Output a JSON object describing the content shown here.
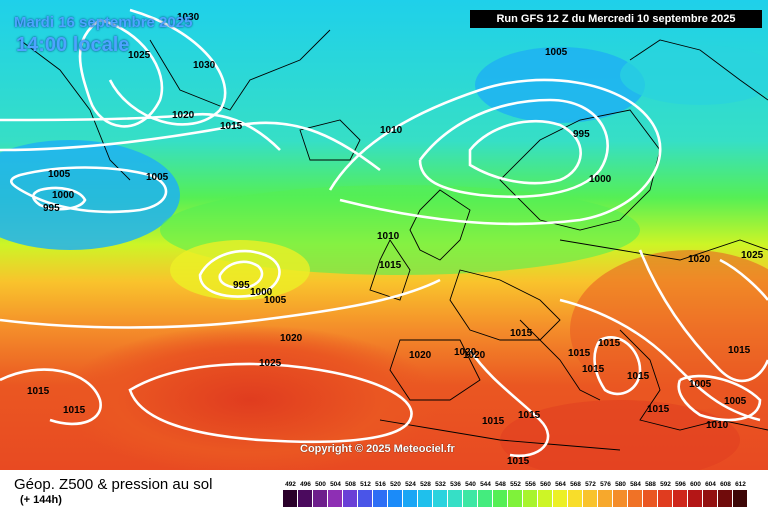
{
  "header": {
    "date_label": "Mardi 16 septembre 2025",
    "time_label": "14:00 locale",
    "run_label": "Run GFS 12 Z du Mercredi 10 septembre 2025"
  },
  "copyright": "Copyright © 2025 Meteociel.fr",
  "legend": {
    "title": "Géop. Z500 & pression au sol",
    "subtitle": "(+ 144h)",
    "ticks": [
      "492",
      "496",
      "500",
      "504",
      "508",
      "512",
      "516",
      "520",
      "524",
      "528",
      "532",
      "536",
      "540",
      "544",
      "548",
      "552",
      "556",
      "560",
      "564",
      "568",
      "572",
      "576",
      "580",
      "584",
      "588",
      "592",
      "596",
      "600",
      "604",
      "608",
      "612"
    ],
    "colors": [
      "#2a002a",
      "#4b0a5e",
      "#6e1e8c",
      "#8e2fb4",
      "#6a3fd6",
      "#4a55e8",
      "#2d6ef5",
      "#1b8bf9",
      "#1aa6f5",
      "#1fc0ec",
      "#2ad3de",
      "#36dfc6",
      "#3de7a4",
      "#44ec7e",
      "#55ef55",
      "#7ff23a",
      "#a8f42e",
      "#cdf526",
      "#ecf026",
      "#f8dd2a",
      "#f9c32c",
      "#f7a82c",
      "#f48d2a",
      "#f07226",
      "#ea5722",
      "#e03c1f",
      "#cf261b",
      "#b41616",
      "#931010",
      "#700b0b",
      "#3d0606"
    ]
  },
  "map": {
    "isobar_labels": [
      {
        "text": "1030"
      },
      {
        "text": "1025"
      },
      {
        "text": "1030"
      },
      {
        "text": "1020"
      },
      {
        "text": "1015"
      },
      {
        "text": "1005"
      },
      {
        "text": "1000"
      },
      {
        "text": "995"
      },
      {
        "text": "1005"
      },
      {
        "text": "1010"
      },
      {
        "text": "1005"
      },
      {
        "text": "995"
      },
      {
        "text": "1000"
      },
      {
        "text": "1010"
      },
      {
        "text": "1015"
      },
      {
        "text": "995"
      },
      {
        "text": "1000"
      },
      {
        "text": "1005"
      },
      {
        "text": "1020"
      },
      {
        "text": "1025"
      },
      {
        "text": "1020"
      },
      {
        "text": "1025"
      },
      {
        "text": "1015"
      },
      {
        "text": "1020"
      },
      {
        "text": "1020"
      },
      {
        "text": "1020"
      },
      {
        "text": "1015"
      },
      {
        "text": "1015"
      },
      {
        "text": "1015"
      },
      {
        "text": "1015"
      },
      {
        "text": "1015"
      },
      {
        "text": "1015"
      },
      {
        "text": "1005"
      },
      {
        "text": "1005"
      },
      {
        "text": "1015"
      },
      {
        "text": "1010"
      },
      {
        "text": "1015"
      },
      {
        "text": "1015"
      },
      {
        "text": "1015"
      },
      {
        "text": "1015"
      }
    ]
  }
}
